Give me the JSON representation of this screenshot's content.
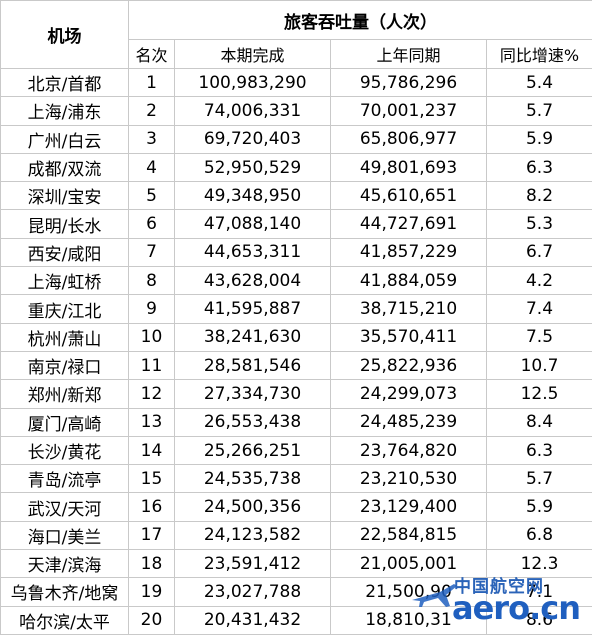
{
  "header": {
    "airport": "机场",
    "throughput": "旅客吞吐量（人次）",
    "rank": "名次",
    "current": "本期完成",
    "last_year": "上年同期",
    "growth": "同比增速%"
  },
  "rows": [
    {
      "airport": "北京/首都",
      "rank": "1",
      "current": "100,983,290",
      "last_year": "95,786,296",
      "growth": "5.4"
    },
    {
      "airport": "上海/浦东",
      "rank": "2",
      "current": "74,006,331",
      "last_year": "70,001,237",
      "growth": "5.7"
    },
    {
      "airport": "广州/白云",
      "rank": "3",
      "current": "69,720,403",
      "last_year": "65,806,977",
      "growth": "5.9"
    },
    {
      "airport": "成都/双流",
      "rank": "4",
      "current": "52,950,529",
      "last_year": "49,801,693",
      "growth": "6.3"
    },
    {
      "airport": "深圳/宝安",
      "rank": "5",
      "current": "49,348,950",
      "last_year": "45,610,651",
      "growth": "8.2"
    },
    {
      "airport": "昆明/长水",
      "rank": "6",
      "current": "47,088,140",
      "last_year": "44,727,691",
      "growth": "5.3"
    },
    {
      "airport": "西安/咸阳",
      "rank": "7",
      "current": "44,653,311",
      "last_year": "41,857,229",
      "growth": "6.7"
    },
    {
      "airport": "上海/虹桥",
      "rank": "8",
      "current": "43,628,004",
      "last_year": "41,884,059",
      "growth": "4.2"
    },
    {
      "airport": "重庆/江北",
      "rank": "9",
      "current": "41,595,887",
      "last_year": "38,715,210",
      "growth": "7.4"
    },
    {
      "airport": "杭州/萧山",
      "rank": "10",
      "current": "38,241,630",
      "last_year": "35,570,411",
      "growth": "7.5"
    },
    {
      "airport": "南京/禄口",
      "rank": "11",
      "current": "28,581,546",
      "last_year": "25,822,936",
      "growth": "10.7"
    },
    {
      "airport": "郑州/新郑",
      "rank": "12",
      "current": "27,334,730",
      "last_year": "24,299,073",
      "growth": "12.5"
    },
    {
      "airport": "厦门/高崎",
      "rank": "13",
      "current": "26,553,438",
      "last_year": "24,485,239",
      "growth": "8.4"
    },
    {
      "airport": "长沙/黄花",
      "rank": "14",
      "current": "25,266,251",
      "last_year": "23,764,820",
      "growth": "6.3"
    },
    {
      "airport": "青岛/流亭",
      "rank": "15",
      "current": "24,535,738",
      "last_year": "23,210,530",
      "growth": "5.7"
    },
    {
      "airport": "武汉/天河",
      "rank": "16",
      "current": "24,500,356",
      "last_year": "23,129,400",
      "growth": "5.9"
    },
    {
      "airport": "海口/美兰",
      "rank": "17",
      "current": "24,123,582",
      "last_year": "22,584,815",
      "growth": "6.8"
    },
    {
      "airport": "天津/滨海",
      "rank": "18",
      "current": "23,591,412",
      "last_year": "21,005,001",
      "growth": "12.3"
    },
    {
      "airport": "乌鲁木齐/地窝",
      "rank": "19",
      "current": "23,027,788",
      "last_year": "21,500,90",
      "growth": "7.1"
    },
    {
      "airport": "哈尔滨/太平",
      "rank": "20",
      "current": "20,431,432",
      "last_year": "18,810,31",
      "growth": "8.6"
    }
  ],
  "watermark": {
    "cn": "中国航空网",
    "en": "aero.cn"
  },
  "colors": {
    "border": "#c9c9c9",
    "watermark_blue": "#1f5fbf"
  }
}
